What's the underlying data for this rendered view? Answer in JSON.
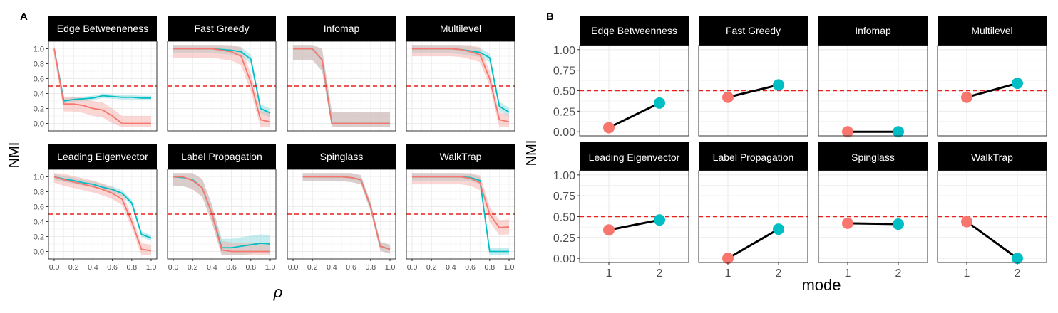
{
  "colors": {
    "red": "#F8766D",
    "teal": "#00BFC4",
    "band_red": "#F4A6A0",
    "band_teal": "#7FD8DB",
    "threshold": "#E8201A",
    "strip_bg": "#000000",
    "strip_text": "#FFFFFF",
    "grid": "#EBEBEB",
    "panel_border": "#333333"
  },
  "panel_A": {
    "label": "A",
    "xlabel": "ρ",
    "ylabel": "NMI"
  },
  "panel_B": {
    "label": "B",
    "xlabel": "mode",
    "ylabel": "NMI"
  },
  "chart_data": [
    {
      "type": "line",
      "panel": "A",
      "facets": [
        "Edge Betweeneness",
        "Fast Greedy",
        "Infomap",
        "Multilevel",
        "Leading Eigenvector",
        "Label Propagation",
        "Spinglass",
        "WalkTrap"
      ],
      "xlabel": "ρ",
      "ylabel": "NMI",
      "xlim": [
        0,
        1
      ],
      "ylim": [
        -0.1,
        1.1
      ],
      "xticks": [
        "0.0",
        "0.2",
        "0.4",
        "0.6",
        "0.8",
        "1.0"
      ],
      "yticks": [
        "0.0",
        "0.2",
        "0.4",
        "0.6",
        "0.8",
        "1.0"
      ],
      "threshold": 0.5,
      "x": [
        0,
        0.1,
        0.2,
        0.3,
        0.4,
        0.5,
        0.6,
        0.7,
        0.8,
        0.9,
        1.0
      ],
      "series": {
        "Edge Betweeneness": [
          {
            "color": "teal",
            "values": [
              1.0,
              0.3,
              0.32,
              0.33,
              0.34,
              0.37,
              0.36,
              0.35,
              0.35,
              0.34,
              0.34
            ],
            "band": 0.03
          },
          {
            "color": "red",
            "values": [
              1.0,
              0.26,
              0.26,
              0.24,
              0.2,
              0.18,
              0.1,
              0.0,
              0.0,
              0.0,
              0.0
            ],
            "band": 0.1
          }
        ],
        "Fast Greedy": [
          {
            "color": "teal",
            "values": [
              1.0,
              1.0,
              1.0,
              1.0,
              1.0,
              0.99,
              0.98,
              0.96,
              0.86,
              0.2,
              0.14
            ],
            "band": 0.06
          },
          {
            "color": "red",
            "values": [
              1.0,
              1.0,
              1.0,
              1.0,
              1.0,
              0.98,
              0.96,
              0.9,
              0.55,
              0.05,
              0.02
            ],
            "band": 0.12
          }
        ],
        "Infomap": [
          {
            "color": "teal",
            "values": [
              1.0,
              1.0,
              1.0,
              0.85,
              0.0,
              0.0,
              0.0,
              0.0,
              0.0,
              0.0,
              0.0
            ],
            "band": 0.15
          },
          {
            "color": "red",
            "values": [
              1.0,
              1.0,
              1.0,
              0.85,
              0.0,
              0.0,
              0.0,
              0.0,
              0.0,
              0.0,
              0.0
            ],
            "band": 0.15
          }
        ],
        "Multilevel": [
          {
            "color": "teal",
            "values": [
              1.0,
              1.0,
              1.0,
              1.0,
              1.0,
              0.99,
              0.97,
              0.95,
              0.88,
              0.23,
              0.15
            ],
            "band": 0.06
          },
          {
            "color": "red",
            "values": [
              1.0,
              1.0,
              1.0,
              1.0,
              1.0,
              0.99,
              0.96,
              0.92,
              0.6,
              0.05,
              0.02
            ],
            "band": 0.1
          }
        ],
        "Leading Eigenvector": [
          {
            "color": "teal",
            "values": [
              1.0,
              0.97,
              0.95,
              0.92,
              0.9,
              0.86,
              0.83,
              0.78,
              0.65,
              0.23,
              0.18
            ],
            "band": 0.04
          },
          {
            "color": "red",
            "values": [
              1.0,
              0.96,
              0.93,
              0.9,
              0.87,
              0.83,
              0.78,
              0.7,
              0.4,
              0.03,
              0.01
            ],
            "band": 0.08
          }
        ],
        "Label Propagation": [
          {
            "color": "teal",
            "values": [
              1.0,
              0.99,
              0.96,
              0.85,
              0.5,
              0.05,
              0.05,
              0.07,
              0.09,
              0.11,
              0.1
            ],
            "band": 0.12
          },
          {
            "color": "red",
            "values": [
              1.0,
              1.0,
              0.95,
              0.85,
              0.5,
              0.02,
              0.0,
              0.0,
              0.0,
              0.0,
              0.0
            ],
            "band": 0.12
          }
        ],
        "Spinglass": [
          {
            "color": "teal",
            "values": [
              null,
              1.0,
              1.0,
              1.0,
              1.0,
              1.0,
              0.99,
              0.96,
              0.6,
              0.07,
              0.03
            ],
            "band": 0.06
          },
          {
            "color": "red",
            "values": [
              null,
              1.0,
              1.0,
              1.0,
              1.0,
              1.0,
              0.99,
              0.96,
              0.6,
              0.07,
              0.03
            ],
            "band": 0.06
          }
        ],
        "WalkTrap": [
          {
            "color": "teal",
            "values": [
              1.0,
              1.0,
              1.0,
              1.0,
              1.0,
              1.0,
              0.99,
              0.95,
              0.0,
              0.0,
              0.0
            ],
            "band": 0.05
          },
          {
            "color": "red",
            "values": [
              1.0,
              1.0,
              1.0,
              1.0,
              1.0,
              1.0,
              0.98,
              0.92,
              0.5,
              0.32,
              0.33
            ],
            "band": 0.1
          }
        ]
      }
    },
    {
      "type": "line",
      "panel": "B",
      "facets": [
        "Edge Betweenness",
        "Fast Greedy",
        "Infomap",
        "Multilevel",
        "Leading Eigenvector",
        "Label Propagation",
        "Spinglass",
        "WalkTrap"
      ],
      "xlabel": "mode",
      "ylabel": "NMI",
      "categories": [
        "1",
        "2"
      ],
      "xticks": [
        "1",
        "2"
      ],
      "ylim": [
        -0.05,
        1.05
      ],
      "yticks": [
        "0.00",
        "0.25",
        "0.50",
        "0.75",
        "1.00"
      ],
      "threshold": 0.5,
      "values": {
        "Edge Betweenness": [
          0.05,
          0.35
        ],
        "Fast Greedy": [
          0.42,
          0.57
        ],
        "Infomap": [
          0.0,
          0.0
        ],
        "Multilevel": [
          0.42,
          0.59
        ],
        "Leading Eigenvector": [
          0.34,
          0.46
        ],
        "Label Propagation": [
          0.0,
          0.35
        ],
        "Spinglass": [
          0.42,
          0.41
        ],
        "WalkTrap": [
          0.44,
          0.0
        ]
      },
      "point_colors": [
        "red",
        "teal"
      ]
    }
  ]
}
